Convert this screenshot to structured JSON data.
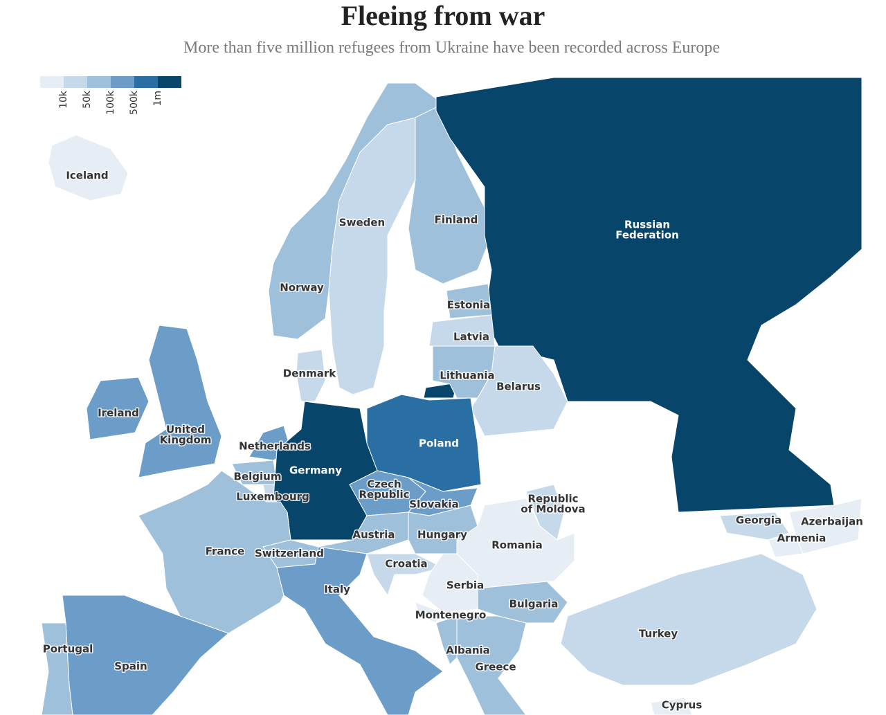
{
  "title": "Fleeing from war",
  "subtitle": "More than five million refugees from Ukraine have been recorded across Europe",
  "legend": {
    "colors": [
      "#e6edf4",
      "#c6d9eb",
      "#9fc0db",
      "#6b9dc8",
      "#2a6fa3",
      "#08456b"
    ],
    "ticks": [
      "10k",
      "50k",
      "100k",
      "500k",
      "1m"
    ]
  },
  "countries": [
    {
      "label": [
        "Iceland"
      ],
      "color": "#e6edf4"
    },
    {
      "label": [
        "Norway"
      ],
      "color": "#9fc0db"
    },
    {
      "label": [
        "Sweden"
      ],
      "color": "#c6d9eb"
    },
    {
      "label": [
        "Finland"
      ],
      "color": "#9fc0db"
    },
    {
      "label": [
        "Russian",
        "Federation"
      ],
      "color": "#08456b"
    },
    {
      "label": [
        "Estonia"
      ],
      "color": "#9fc0db"
    },
    {
      "label": [
        "Latvia"
      ],
      "color": "#c6d9eb"
    },
    {
      "label": [
        "Lithuania"
      ],
      "color": "#9fc0db"
    },
    {
      "label": [
        "Belarus"
      ],
      "color": "#c6d9eb"
    },
    {
      "label": [
        "Denmark"
      ],
      "color": "#c6d9eb"
    },
    {
      "label": [
        "Ireland"
      ],
      "color": "#6b9dc8"
    },
    {
      "label": [
        "United",
        "Kingdom"
      ],
      "color": "#6b9dc8"
    },
    {
      "label": [
        "Netherlands"
      ],
      "color": "#6b9dc8"
    },
    {
      "label": [
        "Belgium"
      ],
      "color": "#9fc0db"
    },
    {
      "label": [
        "Luxembourg"
      ],
      "color": "#c6d9eb"
    },
    {
      "label": [
        "Germany"
      ],
      "color": "#08456b"
    },
    {
      "label": [
        "Poland"
      ],
      "color": "#2a6fa3"
    },
    {
      "label": [
        "Czech",
        "Republic"
      ],
      "color": "#6b9dc8"
    },
    {
      "label": [
        "Slovakia"
      ],
      "color": "#6b9dc8"
    },
    {
      "label": [
        "Austria"
      ],
      "color": "#9fc0db"
    },
    {
      "label": [
        "Hungary"
      ],
      "color": "#9fc0db"
    },
    {
      "label": [
        "Switzerland"
      ],
      "color": "#9fc0db"
    },
    {
      "label": [
        "France"
      ],
      "color": "#9fc0db"
    },
    {
      "label": [
        "Italy"
      ],
      "color": "#6b9dc8"
    },
    {
      "label": [
        "Croatia"
      ],
      "color": "#c6d9eb"
    },
    {
      "label": [
        "Serbia"
      ],
      "color": "#e6edf4"
    },
    {
      "label": [
        "Montenegro"
      ],
      "color": "#e6edf4"
    },
    {
      "label": [
        "Romania"
      ],
      "color": "#9fc0db"
    },
    {
      "label": [
        "Republic",
        "of Moldova"
      ],
      "color": "#9fc0db"
    },
    {
      "label": [
        "Bulgaria"
      ],
      "color": "#9fc0db"
    },
    {
      "label": [
        "Albania"
      ],
      "color": "#e6edf4"
    },
    {
      "label": [
        "Greece"
      ],
      "color": "#c6d9eb"
    },
    {
      "label": [
        "Turkey"
      ],
      "color": "#c6d9eb"
    },
    {
      "label": [
        "Georgia"
      ],
      "color": "#c6d9eb"
    },
    {
      "label": [
        "Armenia"
      ],
      "color": "#e6edf4"
    },
    {
      "label": [
        "Azerbaijan"
      ],
      "color": "#e6edf4"
    },
    {
      "label": [
        "Cyprus"
      ],
      "color": "#e6edf4"
    },
    {
      "label": [
        "Spain"
      ],
      "color": "#6b9dc8"
    },
    {
      "label": [
        "Portugal"
      ],
      "color": "#9fc0db"
    }
  ]
}
